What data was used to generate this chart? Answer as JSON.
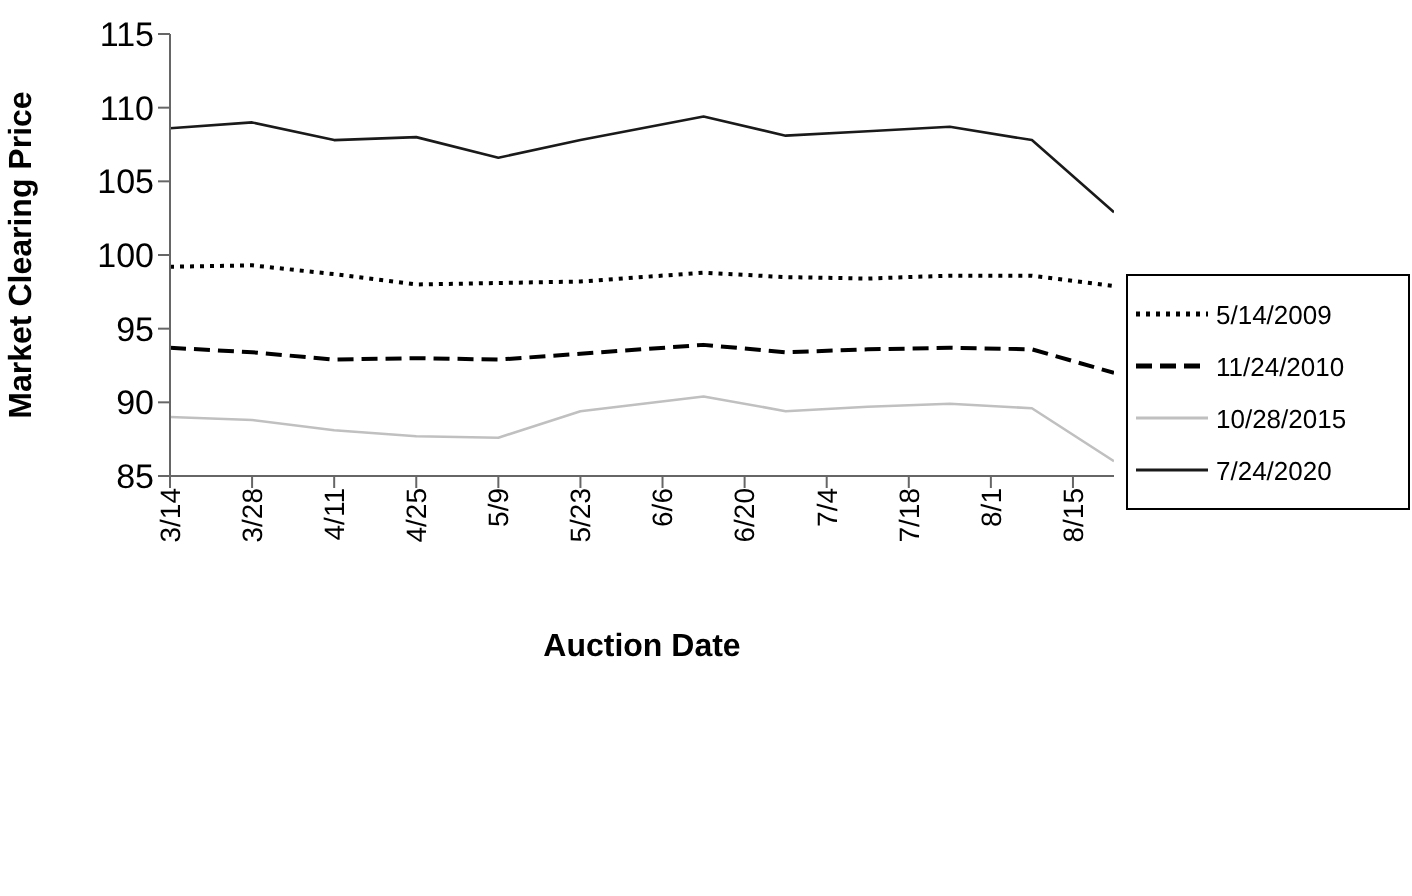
{
  "chart_data": {
    "type": "line",
    "xlabel": "Auction Date",
    "ylabel": "Market Clearing Price",
    "x": [
      "--03-14",
      "--03-28",
      "--04-11",
      "--04-25",
      "--05-09",
      "--05-23",
      "--06-13",
      "--06-27",
      "--07-11",
      "--07-25",
      "--08-08",
      "--08-22"
    ],
    "xlim": [
      "--03-14",
      "--08-22"
    ],
    "xticks": [
      {
        "value": "--03-14",
        "label": "3/14"
      },
      {
        "value": "--03-28",
        "label": "3/28"
      },
      {
        "value": "--04-11",
        "label": "4/11"
      },
      {
        "value": "--04-25",
        "label": "4/25"
      },
      {
        "value": "--05-09",
        "label": "5/9"
      },
      {
        "value": "--05-23",
        "label": "5/23"
      },
      {
        "value": "--06-06",
        "label": "6/6"
      },
      {
        "value": "--06-20",
        "label": "6/20"
      },
      {
        "value": "--07-04",
        "label": "7/4"
      },
      {
        "value": "--07-18",
        "label": "7/18"
      },
      {
        "value": "--08-01",
        "label": "8/1"
      },
      {
        "value": "--08-15",
        "label": "8/15"
      }
    ],
    "ylim": [
      85,
      115
    ],
    "yticks": [
      85,
      90,
      95,
      100,
      105,
      110,
      115
    ],
    "grid": false,
    "legend": "right",
    "marker": "none",
    "series": [
      {
        "name": "5/14/2009",
        "color": "#000000",
        "line_style": "dotted",
        "values": [
          99.2,
          99.3,
          98.7,
          98.0,
          98.1,
          98.2,
          98.8,
          98.5,
          98.4,
          98.6,
          98.6,
          97.9
        ]
      },
      {
        "name": "11/24/2010",
        "color": "#000000",
        "line_style": "dashed",
        "values": [
          93.7,
          93.4,
          92.9,
          93.0,
          92.9,
          93.3,
          93.9,
          93.4,
          93.6,
          93.7,
          93.6,
          92.0
        ]
      },
      {
        "name": "10/28/2015",
        "color": "#c0c0c0",
        "line_style": "solid",
        "values": [
          89.0,
          88.8,
          88.1,
          87.7,
          87.6,
          89.4,
          90.4,
          89.4,
          89.7,
          89.9,
          89.6,
          86.0
        ]
      },
      {
        "name": "7/24/2020",
        "color": "#1a1a1a",
        "line_style": "solid",
        "values": [
          108.6,
          109.0,
          107.8,
          108.0,
          106.6,
          107.8,
          109.4,
          108.1,
          108.4,
          108.7,
          107.8,
          102.9
        ]
      }
    ]
  }
}
